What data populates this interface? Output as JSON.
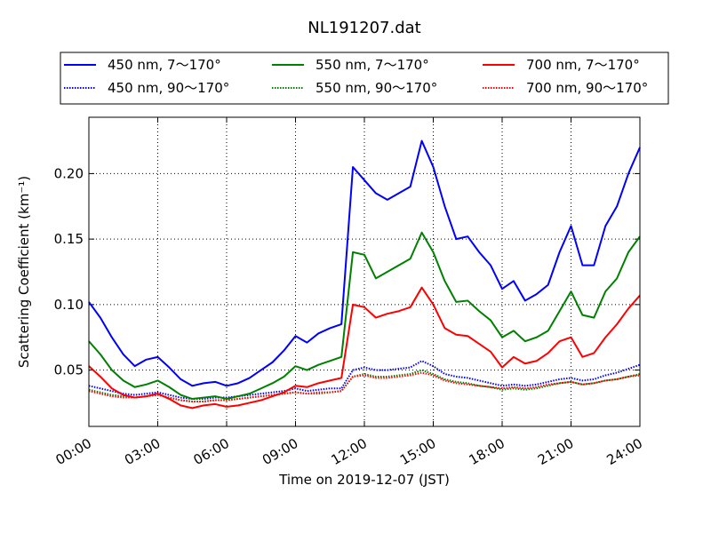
{
  "chart_data": {
    "type": "line",
    "title": "NL191207.dat",
    "xlabel": "Time on 2019-12-07 (JST)",
    "ylabel": "Scattering Coefficient (km⁻¹)",
    "x": [
      "00:00",
      "00:30",
      "01:00",
      "01:30",
      "02:00",
      "02:30",
      "03:00",
      "03:30",
      "04:00",
      "04:30",
      "05:00",
      "05:30",
      "06:00",
      "06:30",
      "07:00",
      "07:30",
      "08:00",
      "08:30",
      "09:00",
      "09:30",
      "10:00",
      "10:30",
      "11:00",
      "11:30",
      "12:00",
      "12:30",
      "13:00",
      "13:30",
      "14:00",
      "14:30",
      "15:00",
      "15:30",
      "16:00",
      "16:30",
      "17:00",
      "17:30",
      "18:00",
      "18:30",
      "19:00",
      "19:30",
      "20:00",
      "20:30",
      "21:00",
      "21:30",
      "22:00",
      "22:30",
      "23:00",
      "23:30",
      "24:00"
    ],
    "xlim": [
      "00:00",
      "24:00"
    ],
    "xticks": [
      "00:00",
      "03:00",
      "06:00",
      "09:00",
      "12:00",
      "15:00",
      "18:00",
      "21:00",
      "24:00"
    ],
    "ylim": [
      0.007,
      0.243
    ],
    "yticks": [
      0.05,
      {
        "value": 0.1,
        "label": "0.10"
      },
      0.15,
      {
        "value": 0.2,
        "label": "0.20"
      }
    ],
    "grid": true,
    "legend": "top",
    "series": [
      {
        "name": "450 nm, 7～170°",
        "color": "#0000ff",
        "linestyle": "solid",
        "values": [
          0.102,
          0.09,
          0.075,
          0.062,
          0.053,
          0.058,
          0.06,
          0.052,
          0.043,
          0.038,
          0.04,
          0.041,
          0.038,
          0.04,
          0.044,
          0.05,
          0.056,
          0.065,
          0.076,
          0.071,
          0.078,
          0.082,
          0.085,
          0.205,
          0.195,
          0.185,
          0.18,
          0.185,
          0.19,
          0.225,
          0.205,
          0.175,
          0.15,
          0.152,
          0.14,
          0.13,
          0.112,
          0.118,
          0.103,
          0.108,
          0.115,
          0.14,
          0.16,
          0.13,
          0.13,
          0.16,
          0.175,
          0.2,
          0.22
        ]
      },
      {
        "name": "450 nm, 90～170°",
        "color": "#0000ff",
        "linestyle": "dotted",
        "values": [
          0.038,
          0.036,
          0.034,
          0.032,
          0.031,
          0.032,
          0.033,
          0.031,
          0.029,
          0.028,
          0.028,
          0.029,
          0.029,
          0.03,
          0.031,
          0.032,
          0.033,
          0.034,
          0.036,
          0.034,
          0.035,
          0.036,
          0.036,
          0.05,
          0.052,
          0.05,
          0.05,
          0.051,
          0.052,
          0.057,
          0.053,
          0.047,
          0.045,
          0.044,
          0.042,
          0.04,
          0.038,
          0.039,
          0.038,
          0.039,
          0.041,
          0.043,
          0.044,
          0.042,
          0.043,
          0.046,
          0.048,
          0.051,
          0.054
        ]
      },
      {
        "name": "550 nm, 7～170°",
        "color": "#008000",
        "linestyle": "solid",
        "values": [
          0.072,
          0.062,
          0.05,
          0.042,
          0.037,
          0.039,
          0.042,
          0.037,
          0.031,
          0.028,
          0.029,
          0.03,
          0.028,
          0.03,
          0.032,
          0.036,
          0.04,
          0.045,
          0.053,
          0.05,
          0.054,
          0.057,
          0.06,
          0.14,
          0.138,
          0.12,
          0.125,
          0.13,
          0.135,
          0.155,
          0.14,
          0.118,
          0.102,
          0.103,
          0.095,
          0.088,
          0.075,
          0.08,
          0.072,
          0.075,
          0.08,
          0.095,
          0.11,
          0.092,
          0.09,
          0.11,
          0.12,
          0.14,
          0.152
        ]
      },
      {
        "name": "550 nm, 90～170°",
        "color": "#008000",
        "linestyle": "dotted",
        "values": [
          0.035,
          0.033,
          0.031,
          0.03,
          0.029,
          0.03,
          0.031,
          0.029,
          0.027,
          0.026,
          0.026,
          0.027,
          0.027,
          0.028,
          0.029,
          0.03,
          0.031,
          0.032,
          0.033,
          0.032,
          0.032,
          0.033,
          0.034,
          0.045,
          0.047,
          0.045,
          0.045,
          0.046,
          0.047,
          0.05,
          0.047,
          0.043,
          0.041,
          0.04,
          0.038,
          0.037,
          0.035,
          0.036,
          0.035,
          0.036,
          0.038,
          0.04,
          0.041,
          0.039,
          0.04,
          0.042,
          0.043,
          0.045,
          0.047
        ]
      },
      {
        "name": "700 nm, 7～170°",
        "color": "#ff0000",
        "linestyle": "solid",
        "values": [
          0.053,
          0.045,
          0.036,
          0.031,
          0.029,
          0.03,
          0.032,
          0.028,
          0.023,
          0.021,
          0.023,
          0.024,
          0.022,
          0.023,
          0.025,
          0.027,
          0.03,
          0.033,
          0.038,
          0.037,
          0.04,
          0.042,
          0.044,
          0.1,
          0.098,
          0.09,
          0.093,
          0.095,
          0.098,
          0.113,
          0.1,
          0.082,
          0.077,
          0.076,
          0.07,
          0.064,
          0.052,
          0.06,
          0.055,
          0.057,
          0.063,
          0.072,
          0.075,
          0.06,
          0.063,
          0.075,
          0.085,
          0.097,
          0.107
        ]
      },
      {
        "name": "700 nm, 90～170°",
        "color": "#ff0000",
        "linestyle": "dotted",
        "values": [
          0.034,
          0.032,
          0.03,
          0.029,
          0.029,
          0.03,
          0.031,
          0.029,
          0.027,
          0.026,
          0.026,
          0.027,
          0.027,
          0.028,
          0.029,
          0.03,
          0.031,
          0.032,
          0.033,
          0.032,
          0.033,
          0.033,
          0.034,
          0.045,
          0.046,
          0.044,
          0.044,
          0.045,
          0.046,
          0.048,
          0.046,
          0.042,
          0.04,
          0.039,
          0.038,
          0.037,
          0.036,
          0.037,
          0.036,
          0.037,
          0.039,
          0.04,
          0.041,
          0.039,
          0.04,
          0.042,
          0.043,
          0.045,
          0.046
        ]
      }
    ]
  }
}
